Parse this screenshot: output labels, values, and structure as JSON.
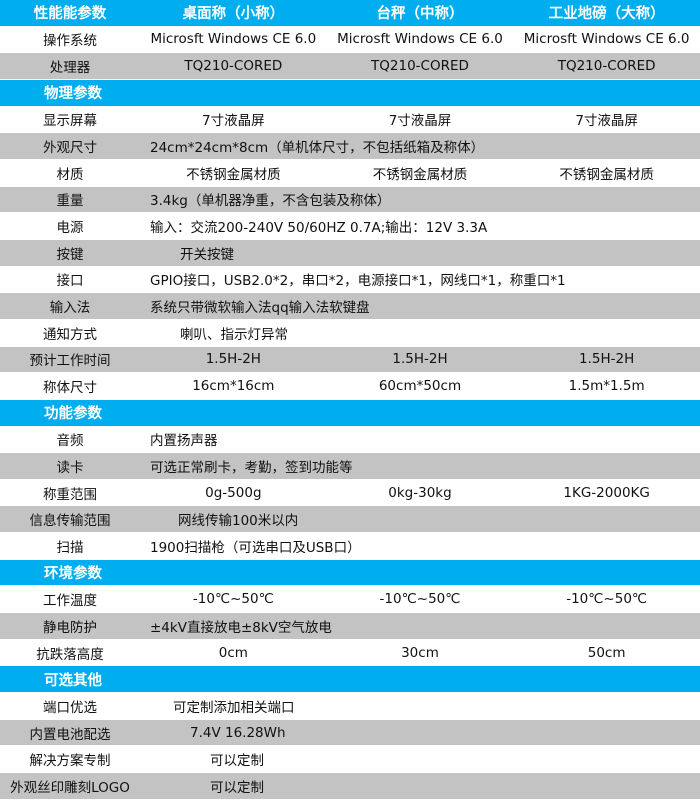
{
  "colors": {
    "header_blue": "#00adee",
    "row_gray": "#c3c3c3",
    "row_white": "#ffffff"
  },
  "rows": [
    {
      "type": "header",
      "label": "性能能参数",
      "values": [
        "桌面称（小称）",
        "台秤（中称）",
        "工业地磅（大称）"
      ]
    },
    {
      "type": "triple",
      "shade": "white",
      "label": "操作系统",
      "values": [
        "Microsft Windows CE 6.0",
        "Microsft Windows CE 6.0",
        "Microsft Windows CE 6.0"
      ]
    },
    {
      "type": "triple",
      "shade": "gray",
      "label": "处理器",
      "values": [
        "TQ210-CORED",
        "TQ210-CORED",
        "TQ210-CORED"
      ]
    },
    {
      "type": "section",
      "label": "物理参数"
    },
    {
      "type": "triple",
      "shade": "white",
      "label": "显示屏幕",
      "values": [
        "7寸液晶屏",
        "7寸液晶屏",
        "7寸液晶屏"
      ]
    },
    {
      "type": "span",
      "shade": "gray",
      "label": "外观尺寸",
      "value": "24cm*24cm*8cm（单机体尺寸，不包括纸箱及称体）"
    },
    {
      "type": "triple",
      "shade": "white",
      "label": "材质",
      "values": [
        "不锈钢金属材质",
        "不锈钢金属材质",
        "不锈钢金属材质"
      ]
    },
    {
      "type": "span",
      "shade": "gray",
      "label": "重量",
      "value": "3.4kg（单机器净重，不含包装及称体）"
    },
    {
      "type": "span",
      "shade": "white",
      "label": "电源",
      "value": "输入：交流200-240V  50/60HZ 0.7A;输出：12V 3.3A"
    },
    {
      "type": "span",
      "shade": "gray",
      "label": "按键",
      "value": "开关按键"
    },
    {
      "type": "span",
      "shade": "white",
      "label": "接口",
      "value": "GPIO接口，USB2.0*2，串口*2，电源接口*1，网线口*1，称重口*1"
    },
    {
      "type": "span",
      "shade": "gray",
      "label": "输入法",
      "value": "系统只带微软输入法qq输入法软键盘"
    },
    {
      "type": "span",
      "shade": "white",
      "label": "通知方式",
      "value": "喇叭、指示灯异常"
    },
    {
      "type": "triple",
      "shade": "gray",
      "label": "预计工作时间",
      "values": [
        "1.5H-2H",
        "1.5H-2H",
        "1.5H-2H"
      ]
    },
    {
      "type": "triple",
      "shade": "white",
      "label": "称体尺寸",
      "values": [
        "16cm*16cm",
        "60cm*50cm",
        "1.5m*1.5m"
      ]
    },
    {
      "type": "section",
      "label": "功能参数"
    },
    {
      "type": "span",
      "shade": "white",
      "label": "音频",
      "value": "内置扬声器"
    },
    {
      "type": "span",
      "shade": "gray",
      "label": "读卡",
      "value": "可选正常刷卡，考勤，签到功能等"
    },
    {
      "type": "triple",
      "shade": "white",
      "label": "称重范围",
      "values": [
        "0g-500g",
        "0kg-30kg",
        "1KG-2000KG"
      ]
    },
    {
      "type": "span",
      "shade": "gray",
      "label": "信息传输范围",
      "value": "网线传输100米以内"
    },
    {
      "type": "span",
      "shade": "white",
      "label": "扫描",
      "value": "1900扫描枪（可选串口及USB口）"
    },
    {
      "type": "section",
      "label": "环境参数"
    },
    {
      "type": "triple",
      "shade": "white",
      "label": "工作温度",
      "values": [
        "-10℃~50℃",
        "-10℃~50℃",
        "-10℃~50℃"
      ]
    },
    {
      "type": "span",
      "shade": "gray",
      "label": "静电防护",
      "value": "±4kV直接放电±8kV空气放电"
    },
    {
      "type": "triple",
      "shade": "white",
      "label": "抗跌落高度",
      "values": [
        "0cm",
        "30cm",
        "50cm"
      ]
    },
    {
      "type": "section",
      "label": "可选其他"
    },
    {
      "type": "span",
      "shade": "white",
      "label": "端口优选",
      "value": "可定制添加相关端口"
    },
    {
      "type": "span",
      "shade": "gray",
      "label": "内置电池配选",
      "value": "7.4V  16.28Wh"
    },
    {
      "type": "span",
      "shade": "white",
      "label": "解决方案专制",
      "value": "可以定制"
    },
    {
      "type": "span",
      "shade": "gray",
      "label": "外观丝印雕刻LOGO",
      "value": "可以定制"
    }
  ]
}
